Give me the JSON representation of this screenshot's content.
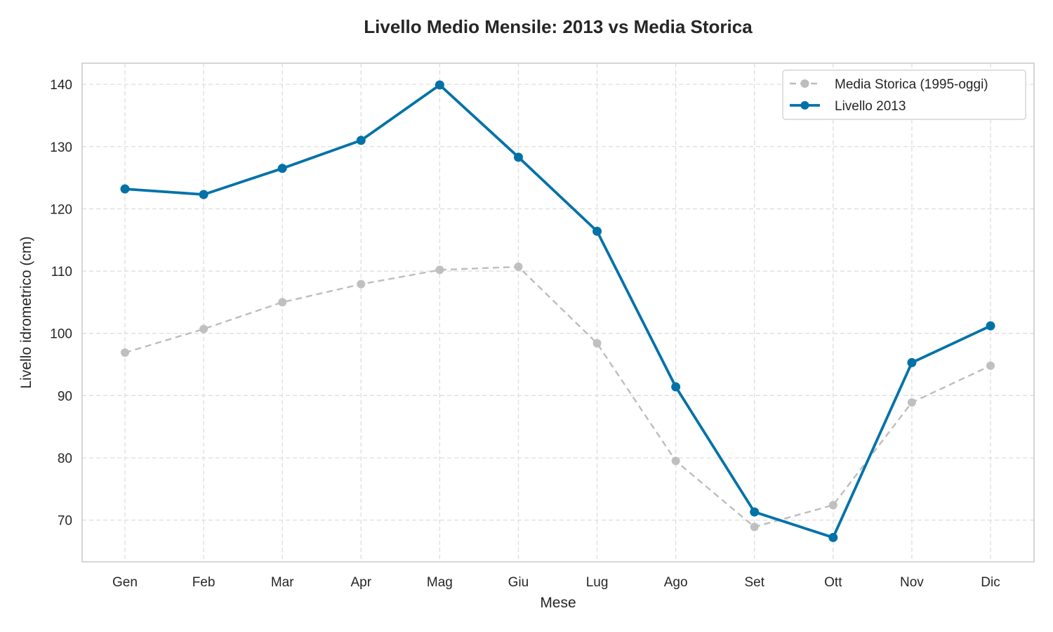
{
  "chart_data": {
    "type": "line",
    "title": "Livello Medio Mensile: 2013 vs Media Storica",
    "xlabel": "Mese",
    "ylabel": "Livello idrometrico (cm)",
    "categories": [
      "Gen",
      "Feb",
      "Mar",
      "Apr",
      "Mag",
      "Giu",
      "Lug",
      "Ago",
      "Set",
      "Ott",
      "Nov",
      "Dic"
    ],
    "ylim": [
      63.3,
      143.4
    ],
    "yticks": [
      70,
      80,
      90,
      100,
      110,
      120,
      130,
      140
    ],
    "grid": true,
    "legend_position": "top-right",
    "series": [
      {
        "name": "Media Storica (1995-oggi)",
        "color": "#bdbdbd",
        "style": "dashed",
        "values": [
          96.9,
          100.7,
          105.0,
          107.9,
          110.2,
          110.7,
          98.4,
          79.5,
          68.9,
          72.4,
          88.9,
          94.8
        ]
      },
      {
        "name": "Livello 2013",
        "color": "#0072a8",
        "style": "solid",
        "values": [
          123.2,
          122.3,
          126.5,
          131.0,
          139.9,
          128.3,
          116.4,
          91.4,
          71.3,
          67.2,
          95.3,
          101.2
        ]
      }
    ]
  }
}
